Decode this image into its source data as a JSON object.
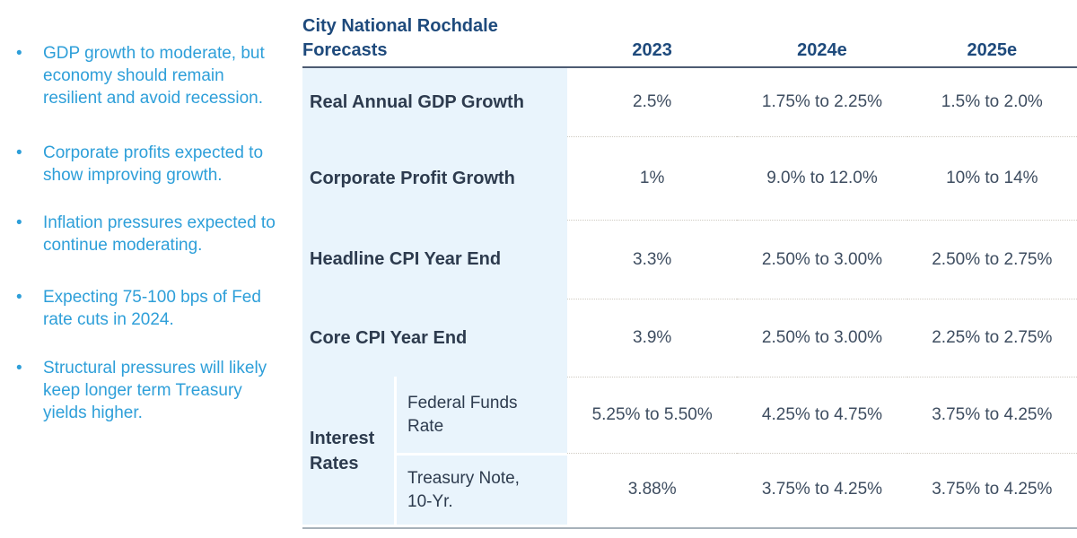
{
  "slide": {
    "bullets": {
      "marker": "•",
      "items": [
        "GDP growth to moderate, but economy should remain resilient and avoid recession.",
        "Corporate profits expected to show improving growth.",
        "Inflation pressures expected to continue moderating.",
        "Expecting 75-100 bps of Fed rate cuts in 2024.",
        "Structural pressures will likely keep longer term Treasury yields higher."
      ]
    },
    "table": {
      "title_line1": "City National Rochdale",
      "title_line2": "Forecasts",
      "columns": [
        "2023",
        "2024e",
        "2025e"
      ],
      "rows": [
        {
          "label": "Real Annual GDP Growth",
          "values": [
            "2.5%",
            "1.75% to 2.25%",
            "1.5% to 2.0%"
          ]
        },
        {
          "label": "Corporate Profit Growth",
          "values": [
            "1%",
            "9.0% to 12.0%",
            "10% to 14%"
          ]
        },
        {
          "label": "Headline CPI Year End",
          "values": [
            "3.3%",
            "2.50% to 3.00%",
            "2.50% to 2.75%"
          ]
        },
        {
          "label": "Core CPI Year End",
          "values": [
            "3.9%",
            "2.50% to 3.00%",
            "2.25% to 2.75%"
          ]
        }
      ],
      "interest_rates_group": {
        "label": "Interest Rates",
        "rows": [
          {
            "label": "Federal Funds Rate",
            "values": [
              "5.25% to 5.50%",
              "4.25% to 4.75%",
              "3.75% to 4.25%"
            ]
          },
          {
            "label": "Treasury Note, 10-Yr.",
            "values": [
              "3.88%",
              "3.75% to 4.25%",
              "3.75% to 4.25%"
            ]
          }
        ]
      }
    },
    "colors": {
      "accent_blue": "#2e9fd9",
      "navy": "#1e4a7c",
      "label_text": "#2d3b4e",
      "value_text": "#3e4d60",
      "row_band": "#e9f4fc"
    }
  }
}
